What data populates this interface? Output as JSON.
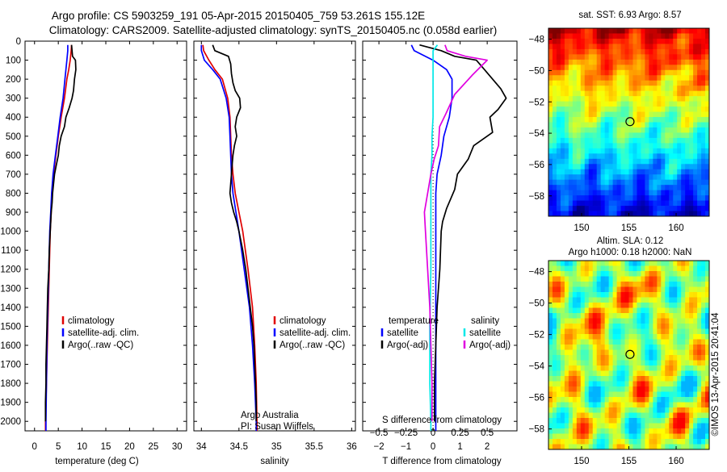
{
  "title": {
    "line1": "Argo profile: CS 5903259_191 05-Apr-2015 20150405_759 53.261S 155.12E",
    "line2": "Climatology: CARS2009. Satellite-adjusted climatology: synTS_20150405.nc (0.058d earlier)"
  },
  "colors": {
    "climatology": "#e00000",
    "satellite": "#0000ff",
    "argo": "#000000",
    "sat_salinity": "#00e8e8",
    "argo_salinity": "#e000e0",
    "background": "#ffffff"
  },
  "depth_axis": {
    "ticks": [
      "0",
      "100",
      "200",
      "300",
      "400",
      "500",
      "600",
      "700",
      "800",
      "900",
      "1000",
      "1100",
      "1200",
      "1300",
      "1400",
      "1500",
      "1600",
      "1700",
      "1800",
      "1900",
      "2000"
    ]
  },
  "chart_data": [
    {
      "type": "line",
      "name": "temperature-profile",
      "xlabel": "temperature (deg C)",
      "xlim": [
        -2,
        32
      ],
      "ylim": [
        2050,
        0
      ],
      "xticks": [
        "0",
        "5",
        "10",
        "15",
        "20",
        "25",
        "30"
      ],
      "legend": [
        "climatology",
        "satellite-adj. clim.",
        "Argo(..raw -QC)"
      ],
      "series": [
        {
          "name": "climatology",
          "color": "#e00000",
          "points": [
            [
              7.8,
              20
            ],
            [
              7.7,
              50
            ],
            [
              7.5,
              100
            ],
            [
              7.2,
              150
            ],
            [
              6.8,
              200
            ],
            [
              6.3,
              300
            ],
            [
              5.6,
              400
            ],
            [
              5.0,
              500
            ],
            [
              4.5,
              600
            ],
            [
              4.0,
              700
            ],
            [
              3.7,
              800
            ],
            [
              3.5,
              900
            ],
            [
              3.3,
              1000
            ],
            [
              3.1,
              1200
            ],
            [
              2.9,
              1400
            ],
            [
              2.7,
              1600
            ],
            [
              2.5,
              1800
            ],
            [
              2.3,
              2000
            ],
            [
              2.3,
              2050
            ]
          ]
        },
        {
          "name": "satellite-adj. clim.",
          "color": "#0000ff",
          "points": [
            [
              7.0,
              20
            ],
            [
              7.0,
              50
            ],
            [
              6.8,
              100
            ],
            [
              6.6,
              150
            ],
            [
              6.4,
              200
            ],
            [
              6.0,
              300
            ],
            [
              5.4,
              400
            ],
            [
              4.9,
              500
            ],
            [
              4.4,
              600
            ],
            [
              3.9,
              700
            ],
            [
              3.6,
              800
            ],
            [
              3.4,
              900
            ],
            [
              3.2,
              1000
            ],
            [
              3.0,
              1200
            ],
            [
              2.8,
              1400
            ],
            [
              2.6,
              1600
            ],
            [
              2.5,
              1800
            ],
            [
              2.4,
              2000
            ],
            [
              2.4,
              2050
            ]
          ]
        },
        {
          "name": "Argo(..raw -QC)",
          "color": "#000000",
          "points": [
            [
              7.8,
              20
            ],
            [
              7.9,
              50
            ],
            [
              8.0,
              80
            ],
            [
              8.6,
              100
            ],
            [
              8.7,
              150
            ],
            [
              8.4,
              200
            ],
            [
              8.2,
              260
            ],
            [
              7.9,
              300
            ],
            [
              7.3,
              350
            ],
            [
              6.6,
              400
            ],
            [
              6.3,
              450
            ],
            [
              5.6,
              500
            ],
            [
              5.2,
              550
            ],
            [
              5.0,
              600
            ],
            [
              4.6,
              650
            ],
            [
              4.2,
              700
            ],
            [
              4.0,
              750
            ],
            [
              3.8,
              800
            ],
            [
              3.7,
              850
            ],
            [
              3.5,
              900
            ],
            [
              3.4,
              950
            ],
            [
              3.3,
              1000
            ],
            [
              3.1,
              1100
            ],
            [
              3.0,
              1200
            ],
            [
              2.8,
              1300
            ],
            [
              2.7,
              1400
            ],
            [
              2.6,
              1500
            ],
            [
              2.5,
              1600
            ],
            [
              2.4,
              1700
            ],
            [
              2.4,
              1800
            ],
            [
              2.3,
              1900
            ],
            [
              2.3,
              2000
            ]
          ]
        }
      ]
    },
    {
      "type": "line",
      "name": "salinity-profile",
      "xlabel": "salinity",
      "xlim": [
        33.9,
        36.05
      ],
      "ylim": [
        2050,
        0
      ],
      "xticks": [
        "34",
        "34.5",
        "35",
        "35.5",
        "36"
      ],
      "legend": [
        "climatology",
        "satellite-adj. clim.",
        "Argo(..raw -QC)"
      ],
      "annotations": [
        "Argo Australia",
        "PI: Susan Wijffels"
      ],
      "series": [
        {
          "name": "climatology",
          "color": "#e00000",
          "points": [
            [
              34.02,
              20
            ],
            [
              34.03,
              50
            ],
            [
              34.1,
              100
            ],
            [
              34.18,
              150
            ],
            [
              34.28,
              200
            ],
            [
              34.35,
              300
            ],
            [
              34.38,
              400
            ],
            [
              34.39,
              500
            ],
            [
              34.4,
              600
            ],
            [
              34.42,
              700
            ],
            [
              34.45,
              800
            ],
            [
              34.5,
              900
            ],
            [
              34.55,
              1000
            ],
            [
              34.62,
              1200
            ],
            [
              34.68,
              1400
            ],
            [
              34.71,
              1600
            ],
            [
              34.73,
              1800
            ],
            [
              34.74,
              2000
            ],
            [
              34.74,
              2050
            ]
          ]
        },
        {
          "name": "satellite-adj. clim.",
          "color": "#0000ff",
          "points": [
            [
              34.0,
              20
            ],
            [
              34.0,
              50
            ],
            [
              34.04,
              100
            ],
            [
              34.15,
              150
            ],
            [
              34.25,
              200
            ],
            [
              34.33,
              300
            ],
            [
              34.37,
              400
            ],
            [
              34.38,
              500
            ],
            [
              34.39,
              600
            ],
            [
              34.4,
              700
            ],
            [
              34.42,
              800
            ],
            [
              34.46,
              900
            ],
            [
              34.5,
              1000
            ],
            [
              34.57,
              1200
            ],
            [
              34.64,
              1400
            ],
            [
              34.68,
              1600
            ],
            [
              34.71,
              1800
            ],
            [
              34.73,
              2000
            ],
            [
              34.73,
              2050
            ]
          ]
        },
        {
          "name": "Argo(..raw -QC)",
          "color": "#000000",
          "points": [
            [
              34.15,
              20
            ],
            [
              34.18,
              50
            ],
            [
              34.36,
              80
            ],
            [
              34.39,
              120
            ],
            [
              34.4,
              170
            ],
            [
              34.42,
              220
            ],
            [
              34.45,
              260
            ],
            [
              34.51,
              300
            ],
            [
              34.52,
              350
            ],
            [
              34.47,
              400
            ],
            [
              34.45,
              450
            ],
            [
              34.47,
              500
            ],
            [
              34.44,
              550
            ],
            [
              34.42,
              600
            ],
            [
              34.41,
              650
            ],
            [
              34.4,
              700
            ],
            [
              34.39,
              750
            ],
            [
              34.38,
              800
            ],
            [
              34.4,
              850
            ],
            [
              34.43,
              900
            ],
            [
              34.47,
              950
            ],
            [
              34.5,
              1000
            ],
            [
              34.55,
              1100
            ],
            [
              34.59,
              1200
            ],
            [
              34.62,
              1300
            ],
            [
              34.65,
              1400
            ],
            [
              34.68,
              1500
            ],
            [
              34.7,
              1600
            ],
            [
              34.71,
              1700
            ],
            [
              34.72,
              1800
            ],
            [
              34.73,
              1900
            ],
            [
              34.73,
              2000
            ]
          ]
        }
      ]
    },
    {
      "type": "line",
      "name": "difference-profile",
      "xlabel": "T difference from climatology",
      "top_axis_label": "S difference from climatology",
      "xlim": [
        -2.6,
        3.1
      ],
      "s_xlim": [
        -0.65,
        0.775
      ],
      "ylim": [
        2050,
        0
      ],
      "xticks": [
        "-2",
        "-1",
        "0",
        "1",
        "2"
      ],
      "s_xticks": [
        "-0.5",
        "-0.25",
        "0",
        "0.25",
        "0.5"
      ],
      "legend": {
        "temperature_header": "temperature",
        "salinity_header": "salinity",
        "temperature": [
          "satellite",
          "Argo(-adj)"
        ],
        "salinity": [
          "satellite",
          "Argo(-adj)"
        ]
      },
      "series": [
        {
          "name": "T satellite",
          "color": "#0000ff",
          "axis": "T",
          "points": [
            [
              -0.8,
              20
            ],
            [
              -0.7,
              50
            ],
            [
              0.0,
              100
            ],
            [
              0.5,
              150
            ],
            [
              0.7,
              200
            ],
            [
              0.7,
              300
            ],
            [
              0.6,
              400
            ],
            [
              0.4,
              500
            ],
            [
              0.3,
              600
            ],
            [
              0.15,
              700
            ],
            [
              0.1,
              800
            ],
            [
              0.1,
              1000
            ],
            [
              0.1,
              1500
            ],
            [
              0.1,
              2000
            ],
            [
              0.1,
              2050
            ]
          ]
        },
        {
          "name": "T Argo(-adj)",
          "color": "#000000",
          "axis": "T",
          "points": [
            [
              -0.5,
              20
            ],
            [
              0.3,
              50
            ],
            [
              0.8,
              80
            ],
            [
              1.6,
              100
            ],
            [
              1.9,
              150
            ],
            [
              2.5,
              250
            ],
            [
              2.7,
              300
            ],
            [
              2.4,
              360
            ],
            [
              2.1,
              400
            ],
            [
              2.2,
              480
            ],
            [
              1.5,
              550
            ],
            [
              1.3,
              620
            ],
            [
              0.9,
              700
            ],
            [
              0.8,
              780
            ],
            [
              0.5,
              880
            ],
            [
              0.35,
              950
            ],
            [
              0.3,
              1000
            ],
            [
              0.25,
              1200
            ],
            [
              0.15,
              1400
            ],
            [
              0.1,
              1600
            ],
            [
              0.05,
              1800
            ],
            [
              0.05,
              2000
            ]
          ]
        },
        {
          "name": "S satellite",
          "color": "#00e8e8",
          "axis": "S",
          "points": [
            [
              0.04,
              20
            ],
            [
              0.0,
              50
            ],
            [
              0.0,
              100
            ],
            [
              0.0,
              200
            ],
            [
              0.0,
              300
            ],
            [
              0.0,
              400
            ],
            [
              -0.01,
              500
            ],
            [
              -0.01,
              600
            ],
            [
              -0.02,
              700
            ],
            [
              -0.02,
              800
            ],
            [
              -0.02,
              1000
            ],
            [
              -0.02,
              1200
            ],
            [
              -0.03,
              1500
            ],
            [
              -0.03,
              1800
            ],
            [
              -0.02,
              2000
            ],
            [
              -0.02,
              2050
            ]
          ]
        },
        {
          "name": "S Argo(-adj)",
          "color": "#e000e0",
          "axis": "S",
          "points": [
            [
              0.11,
              20
            ],
            [
              0.13,
              50
            ],
            [
              0.3,
              80
            ],
            [
              0.5,
              100
            ],
            [
              0.36,
              180
            ],
            [
              0.2,
              280
            ],
            [
              0.12,
              380
            ],
            [
              0.06,
              450
            ],
            [
              0.05,
              550
            ],
            [
              0.01,
              620
            ],
            [
              -0.02,
              700
            ],
            [
              -0.05,
              800
            ],
            [
              -0.08,
              900
            ],
            [
              -0.07,
              1000
            ],
            [
              -0.05,
              1200
            ],
            [
              -0.03,
              1400
            ],
            [
              -0.02,
              1600
            ],
            [
              -0.01,
              1800
            ],
            [
              -0.01,
              2000
            ]
          ]
        }
      ]
    }
  ],
  "maps": {
    "sst": {
      "title": "sat. SST: 6.93 Argo: 8.57",
      "xticks": [
        "150",
        "155",
        "160"
      ],
      "yticks": [
        "-48",
        "-50",
        "-52",
        "-54",
        "-56",
        "-58"
      ],
      "x_range": [
        146.5,
        163.5
      ],
      "y_range": [
        -59.3,
        -47.3
      ],
      "marker": {
        "lon": 155.12,
        "lat": -53.26
      }
    },
    "sla": {
      "title_line1": "Altim. SLA: 0.12",
      "title_line2": "Argo h1000: 0.18 h2000: NaN",
      "xticks": [
        "150",
        "155",
        "160"
      ],
      "yticks": [
        "-48",
        "-50",
        "-52",
        "-54",
        "-56",
        "-58"
      ],
      "x_range": [
        146.5,
        163.5
      ],
      "y_range": [
        -59.3,
        -47.3
      ],
      "marker": {
        "lon": 155.12,
        "lat": -53.26
      }
    }
  },
  "credit": "©IMOS 13-Apr-2015 20:41:04"
}
